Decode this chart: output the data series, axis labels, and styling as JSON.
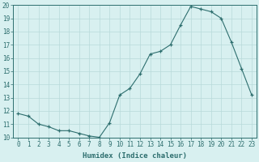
{
  "x": [
    0,
    1,
    2,
    3,
    4,
    5,
    6,
    7,
    8,
    9,
    10,
    11,
    12,
    13,
    14,
    15,
    16,
    17,
    18,
    19,
    20,
    21,
    22,
    23
  ],
  "y": [
    11.8,
    11.6,
    11.0,
    10.8,
    10.5,
    10.5,
    10.3,
    10.1,
    10.0,
    11.1,
    13.2,
    13.7,
    14.8,
    16.3,
    16.5,
    17.0,
    18.5,
    19.9,
    19.7,
    19.5,
    19.0,
    17.2,
    15.2,
    13.2
  ],
  "line_color": "#2d6e6e",
  "bg_color": "#d8f0f0",
  "grid_color": "#b8dada",
  "xlabel": "Humidex (Indice chaleur)",
  "xlim": [
    -0.5,
    23.5
  ],
  "ylim": [
    10,
    20
  ],
  "yticks": [
    10,
    11,
    12,
    13,
    14,
    15,
    16,
    17,
    18,
    19,
    20
  ],
  "xticks": [
    0,
    1,
    2,
    3,
    4,
    5,
    6,
    7,
    8,
    9,
    10,
    11,
    12,
    13,
    14,
    15,
    16,
    17,
    18,
    19,
    20,
    21,
    22,
    23
  ]
}
